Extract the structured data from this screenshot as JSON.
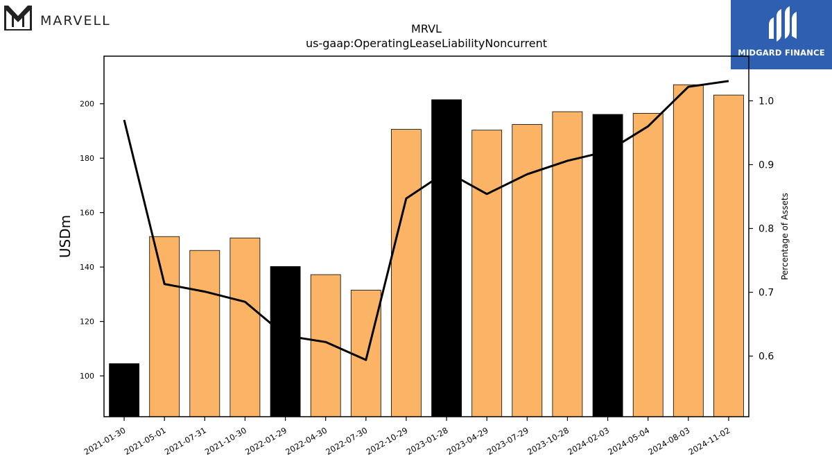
{
  "header": {
    "left_logo_text": "MARVELL",
    "left_logo_icon": "marvell-logo-icon",
    "right_logo_text": "MIDGARD FINANCE",
    "right_logo_icon": "midgard-logo-icon",
    "right_logo_color": "#2f5fb0"
  },
  "chart_data": {
    "type": "bar",
    "title": "MRVL",
    "subtitle": "us-gaap:OperatingLeaseLiabilityNoncurrent",
    "ylabel": "USDm",
    "y2label": "Percentage of Assets",
    "ylim": [
      85,
      217.5
    ],
    "y2lim": [
      0.505,
      1.07
    ],
    "yticks": [
      100,
      120,
      140,
      160,
      180,
      200
    ],
    "y2ticks": [
      0.6,
      0.7,
      0.8,
      0.9,
      1.0
    ],
    "categories": [
      "2021-01-30",
      "2021-05-01",
      "2021-07-31",
      "2021-10-30",
      "2022-01-29",
      "2022-04-30",
      "2022-07-30",
      "2022-10-29",
      "2023-01-28",
      "2023-04-29",
      "2023-07-29",
      "2023-10-28",
      "2024-02-03",
      "2024-05-04",
      "2024-08-03",
      "2024-11-02"
    ],
    "series": [
      {
        "type": "bar",
        "axis": "left",
        "values": [
          104.5,
          151.2,
          146.1,
          150.7,
          140.2,
          137.2,
          131.5,
          190.6,
          201.5,
          190.3,
          192.4,
          197.1,
          196.1,
          196.5,
          207.0,
          203.2
        ],
        "highlight": [
          true,
          false,
          false,
          false,
          true,
          false,
          false,
          false,
          true,
          false,
          false,
          false,
          true,
          false,
          false,
          false
        ]
      },
      {
        "type": "line",
        "axis": "right",
        "values": [
          0.97,
          0.713,
          0.701,
          0.685,
          0.632,
          0.622,
          0.594,
          0.847,
          0.889,
          0.854,
          0.885,
          0.906,
          0.921,
          0.96,
          1.022,
          1.031
        ]
      }
    ],
    "colors": {
      "bar": "#fbb466",
      "bar_highlight": "#000000",
      "line": "#000000"
    }
  }
}
